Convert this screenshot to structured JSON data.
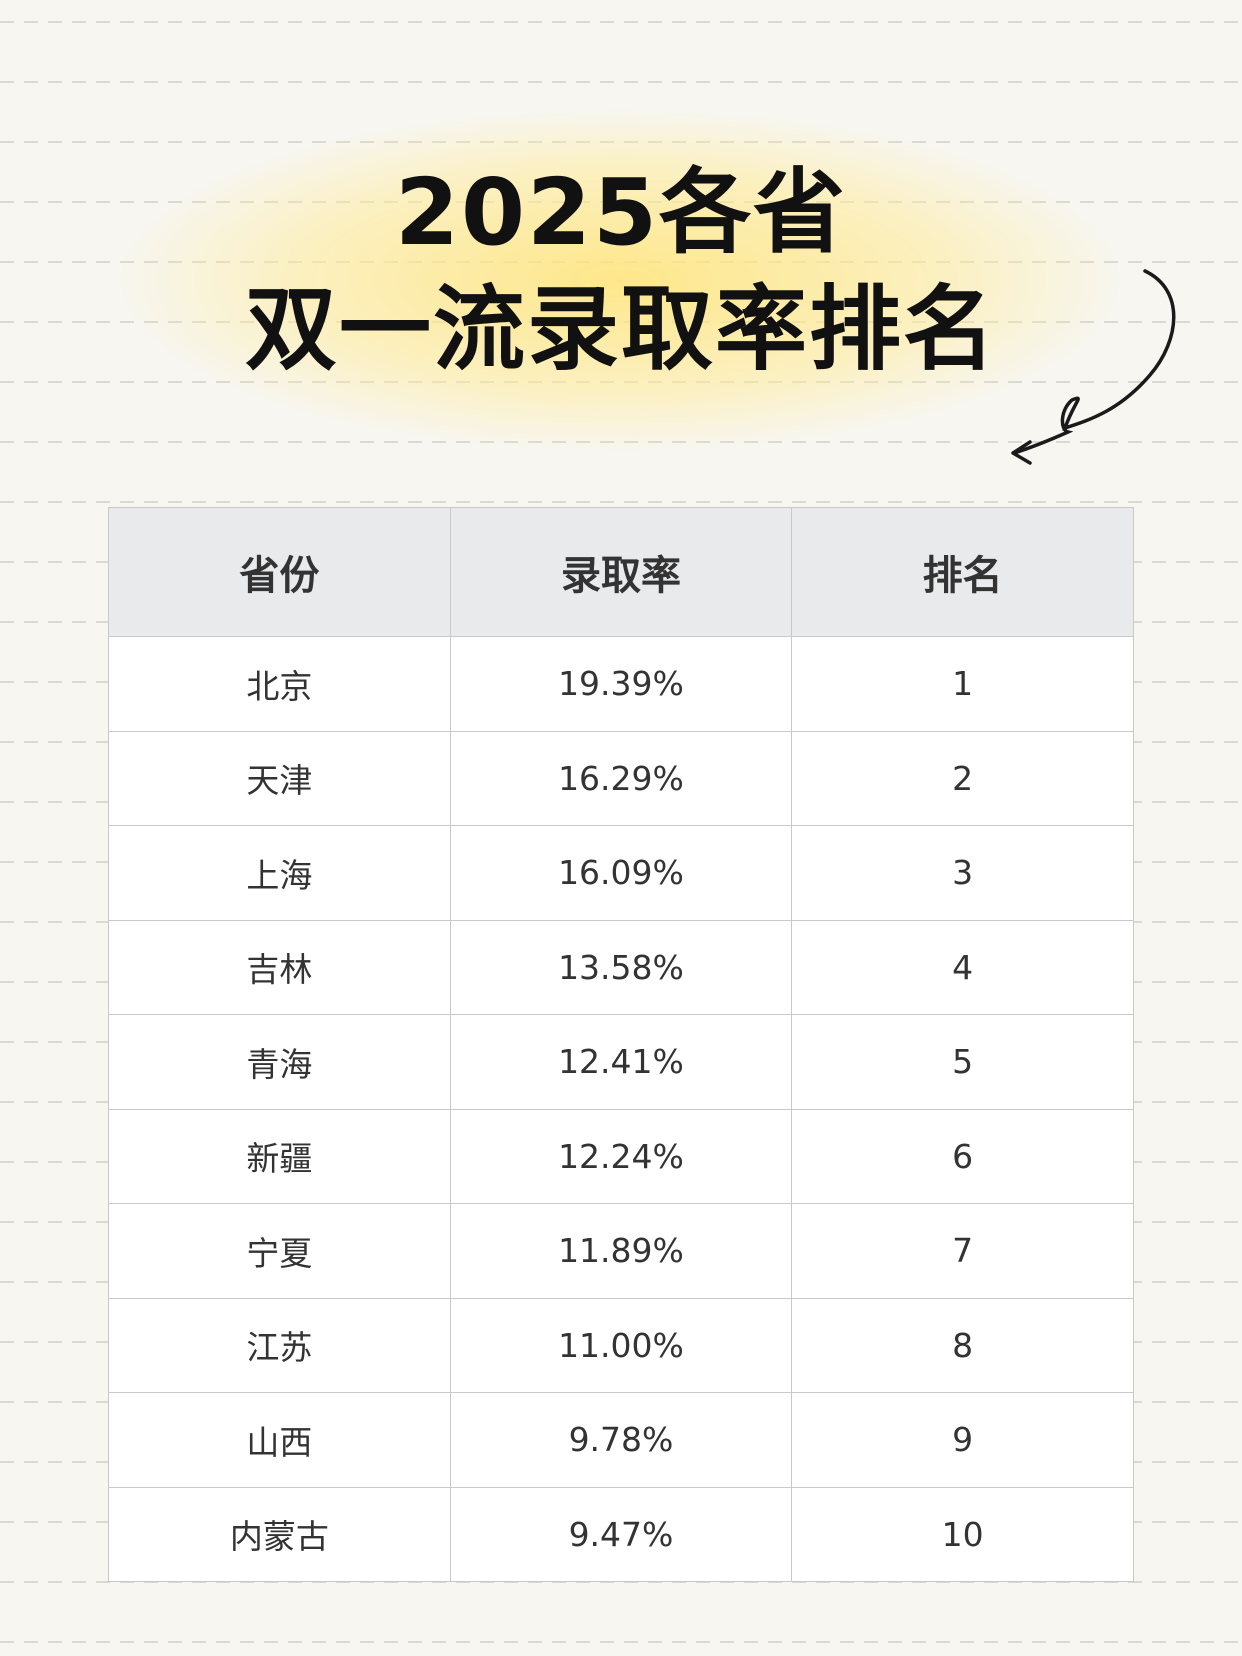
{
  "title": {
    "line1": "2025各省",
    "line2": "双一流录取率排名"
  },
  "table": {
    "headers": [
      "省份",
      "录取率",
      "排名"
    ],
    "rows": [
      [
        "北京",
        "19.39%",
        "1"
      ],
      [
        "天津",
        "16.29%",
        "2"
      ],
      [
        "上海",
        "16.09%",
        "3"
      ],
      [
        "吉林",
        "13.58%",
        "4"
      ],
      [
        "青海",
        "12.41%",
        "5"
      ],
      [
        "新疆",
        "12.24%",
        "6"
      ],
      [
        "宁夏",
        "11.89%",
        "7"
      ],
      [
        "江苏",
        "11.00%",
        "8"
      ],
      [
        "山西",
        "9.78%",
        "9"
      ],
      [
        "内蒙古",
        "9.47%",
        "10"
      ]
    ]
  },
  "colors": {
    "background": "#f7f6f1",
    "header_bg": "#e9eaec",
    "glow": "#ffe478"
  },
  "icons": {
    "decoration": "curly-arrow-icon"
  }
}
